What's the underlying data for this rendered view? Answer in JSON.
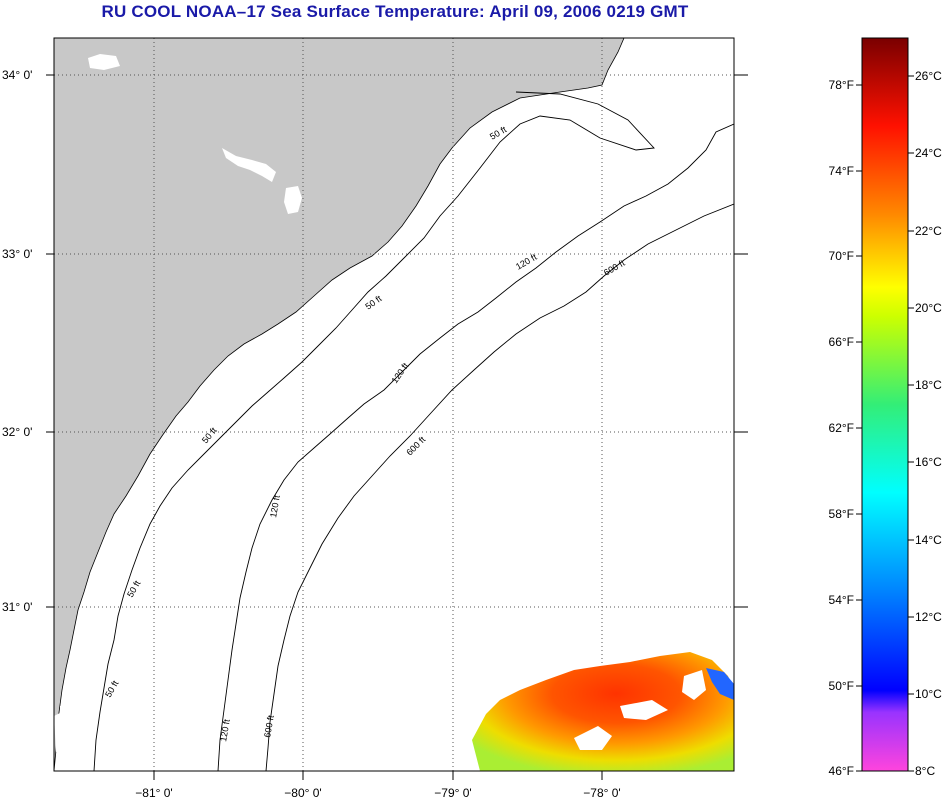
{
  "title": "RU COOL  NOAA–17  Sea Surface Temperature:  April 09, 2006 0219 GMT",
  "map": {
    "lat_ticks": [
      "34° 0'",
      "33° 0'",
      "32° 0'",
      "31° 0'"
    ],
    "lon_ticks": [
      "−81° 0'",
      "−80° 0'",
      "−79° 0'",
      "−78° 0'"
    ],
    "contour_labels": {
      "c50": "50 ft",
      "c120": "120 ft",
      "c600": "600 ft"
    },
    "colors": {
      "land": "#c8c8c8",
      "ocean": "#ffffff",
      "grid": "#555555"
    }
  },
  "colorbar": {
    "fahrenheit_labels": [
      "78°F",
      "74°F",
      "70°F",
      "66°F",
      "62°F",
      "58°F",
      "54°F",
      "50°F",
      "46°F"
    ],
    "celsius_labels": [
      "26°C",
      "24°C",
      "22°C",
      "20°C",
      "18°C",
      "16°C",
      "14°C",
      "12°C",
      "10°C",
      "8°C"
    ]
  }
}
